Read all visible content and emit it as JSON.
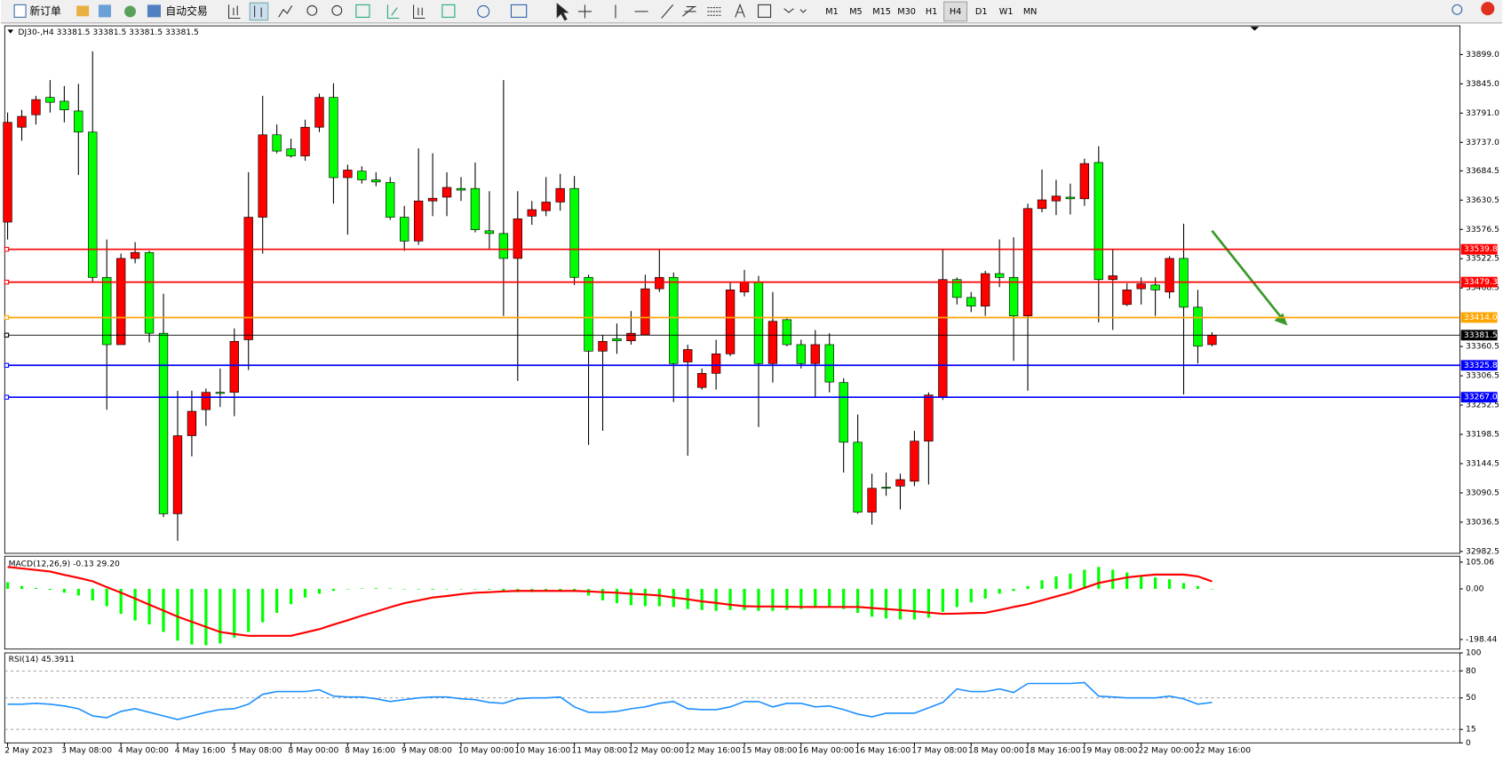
{
  "toolbar": {
    "new_order": "新订单",
    "auto_trading": "自动交易",
    "timeframes": [
      "M1",
      "M5",
      "M15",
      "M30",
      "H1",
      "H4",
      "D1",
      "W1",
      "MN"
    ],
    "active_timeframe": "H4"
  },
  "chart_data": [
    {
      "type": "candlestick",
      "title": "DJ30-,H4 33381.5 33381.5 33381.5 33381.5",
      "categories": [
        "2 May 2023",
        null,
        null,
        null,
        "3 May 08:00",
        null,
        null,
        null,
        "4 May 00:00",
        null,
        null,
        null,
        "4 May 16:00",
        null,
        null,
        null,
        "5 May 08:00",
        null,
        null,
        null,
        "8 May 00:00",
        null,
        null,
        null,
        "8 May 16:00",
        null,
        null,
        null,
        "9 May 08:00",
        null,
        null,
        null,
        "10 May 00:00",
        null,
        null,
        null,
        "10 May 16:00",
        null,
        null,
        null,
        "11 May 08:00",
        null,
        null,
        null,
        "12 May 00:00",
        null,
        null,
        null,
        "12 May 16:00",
        null,
        null,
        null,
        "15 May 08:00",
        null,
        null,
        null,
        "16 May 00:00",
        null,
        null,
        null,
        "16 May 16:00",
        null,
        null,
        null,
        "17 May 08:00",
        null,
        null,
        null,
        "18 May 00:00",
        null,
        null,
        null,
        "18 May 16:00",
        null,
        null,
        null,
        "19 May 08:00",
        null,
        null,
        null,
        "22 May 00:00",
        null,
        null,
        null,
        "22 May 16:00",
        null
      ],
      "open": [
        33590,
        33765,
        33788,
        33820,
        33813,
        33795,
        33756,
        33488,
        33364,
        33523,
        33534,
        33385,
        33052,
        33196,
        33244,
        33276,
        33276,
        33373,
        33599,
        33751,
        33725,
        33712,
        33765,
        33820,
        33672,
        33684,
        33668,
        33663,
        33599,
        33555,
        33629,
        33636,
        33652,
        33652,
        33574,
        33569,
        33523,
        33601,
        33611,
        33627,
        33652,
        33488,
        33352,
        33375,
        33371,
        33382,
        33467,
        33488,
        33332,
        33285,
        33311,
        33347,
        33461,
        33479,
        33329,
        33410,
        33364,
        33329,
        33364,
        33294,
        33184,
        33055,
        33101,
        33103,
        33112,
        33186,
        33267,
        33484,
        33451,
        33435,
        33495,
        33488,
        33417,
        33615,
        33629,
        33636,
        33633,
        33700,
        33484,
        33438,
        33467,
        33474,
        33461,
        33523,
        33433,
        33364
      ],
      "high": [
        33792,
        33797,
        33823,
        33852,
        33841,
        33845,
        33905,
        33558,
        33532,
        33553,
        33537,
        33458,
        33279,
        33279,
        33283,
        33320,
        33394,
        33682,
        33823,
        33770,
        33744,
        33779,
        33827,
        33846,
        33696,
        33693,
        33682,
        33673,
        33620,
        33726,
        33717,
        33682,
        33673,
        33700,
        33647,
        33852,
        33647,
        33629,
        33673,
        33679,
        33675,
        33493,
        33382,
        33403,
        33426,
        33493,
        33541,
        33497,
        33364,
        33320,
        33373,
        33479,
        33502,
        33491,
        33461,
        33412,
        33373,
        33391,
        33385,
        33302,
        33235,
        33126,
        33128,
        33126,
        33205,
        33276,
        33541,
        33488,
        33461,
        33500,
        33558,
        33562,
        33624,
        33687,
        33668,
        33661,
        33707,
        33730,
        33541,
        33477,
        33488,
        33488,
        33527,
        33587,
        33465,
        33387
      ],
      "low": [
        33558,
        33740,
        33770,
        33792,
        33774,
        33677,
        33479,
        33244,
        33364,
        33514,
        33368,
        33046,
        33002,
        33158,
        33214,
        33249,
        33232,
        33317,
        33532,
        33717,
        33709,
        33703,
        33756,
        33624,
        33567,
        33661,
        33656,
        33594,
        33537,
        33548,
        33601,
        33601,
        33629,
        33571,
        33541,
        33417,
        33297,
        33585,
        33601,
        33611,
        33474,
        33179,
        33205,
        33347,
        33364,
        33382,
        33461,
        33258,
        33159,
        33281,
        33281,
        33343,
        33453,
        33212,
        33294,
        33361,
        33320,
        33267,
        33276,
        33128,
        33052,
        33032,
        33085,
        33060,
        33103,
        33106,
        33262,
        33438,
        33424,
        33417,
        33470,
        33334,
        33279,
        33608,
        33603,
        33604,
        33620,
        33405,
        33391,
        33435,
        33438,
        33417,
        33449,
        33272,
        33329,
        33361
      ],
      "close": [
        33774,
        33785,
        33816,
        33811,
        33797,
        33756,
        33488,
        33364,
        33523,
        33534,
        33385,
        33052,
        33196,
        33241,
        33276,
        33274,
        33370,
        33599,
        33751,
        33721,
        33712,
        33765,
        33820,
        33672,
        33686,
        33668,
        33664,
        33599,
        33555,
        33629,
        33634,
        33654,
        33649,
        33576,
        33569,
        33523,
        33596,
        33613,
        33627,
        33652,
        33488,
        33352,
        33370,
        33371,
        33385,
        33467,
        33488,
        33329,
        33355,
        33311,
        33347,
        33465,
        33479,
        33329,
        33407,
        33364,
        33329,
        33364,
        33295,
        33184,
        33055,
        33099,
        33099,
        33115,
        33186,
        33271,
        33484,
        33451,
        33435,
        33495,
        33488,
        33417,
        33615,
        33631,
        33638,
        33633,
        33698,
        33484,
        33491,
        33465,
        33476,
        33465,
        33523,
        33433,
        33361,
        33381.5
      ],
      "up_color": "#ff0000",
      "down_color": "#00ff00",
      "ylim": [
        32979,
        33952
      ],
      "yticks": [
        {
          "value": 33899,
          "label": "33899.0"
        },
        {
          "value": 33845,
          "label": "33845.0"
        },
        {
          "value": 33791,
          "label": "33791.0"
        },
        {
          "value": 33737,
          "label": "33737.0"
        },
        33684.5,
        33630.5,
        33576.5,
        33522.5,
        33468.5,
        33360.5,
        33306.5,
        33252.5,
        33198.5,
        33144.5,
        33090.5,
        33036.5,
        32982.5
      ],
      "price_lines": [
        {
          "value": 33539.8,
          "color": "#ff0000"
        },
        {
          "value": 33479.3,
          "color": "#ff0000"
        },
        {
          "value": 33414,
          "label": "33414.0",
          "color": "#ffa500"
        },
        {
          "value": 33381.5,
          "color": "#000000"
        },
        {
          "value": 33325.8,
          "color": "#0000ff"
        },
        {
          "value": 33267,
          "label": "33267.0",
          "color": "#0000ff"
        }
      ]
    },
    {
      "type": "macd",
      "title": "MACD(12,26,9) -0.13 29.20",
      "histogram": [
        26,
        11,
        4,
        -4,
        -15,
        -26,
        -45,
        -68,
        -98,
        -124,
        -139,
        -169,
        -203,
        -218,
        -221,
        -214,
        -191,
        -169,
        -131,
        -94,
        -60,
        -34,
        -19,
        -8,
        -1,
        2,
        3,
        2,
        0,
        -2,
        -3,
        -2,
        0,
        -1,
        -3,
        -9,
        -13,
        -13,
        -11,
        -8,
        -11,
        -26,
        -45,
        -56,
        -64,
        -68,
        -68,
        -71,
        -79,
        -83,
        -86,
        -83,
        -83,
        -86,
        -86,
        -83,
        -79,
        -75,
        -71,
        -79,
        -94,
        -109,
        -116,
        -120,
        -120,
        -113,
        -90,
        -71,
        -53,
        -38,
        -19,
        -8,
        11,
        34,
        49,
        60,
        75,
        86,
        75,
        64,
        53,
        45,
        38,
        23,
        11,
        -0.13
      ],
      "signal": [
        86,
        80,
        74,
        68,
        55,
        43,
        30,
        7,
        -15,
        -38,
        -62,
        -85,
        -109,
        -129,
        -149,
        -169,
        -177,
        -184,
        -184,
        -184,
        -184,
        -171,
        -158,
        -140,
        -123,
        -105,
        -89,
        -72,
        -56,
        -45,
        -34,
        -28,
        -21,
        -15,
        -13,
        -10,
        -8,
        -8,
        -8,
        -8,
        -8,
        -10,
        -13,
        -15,
        -19,
        -22,
        -26,
        -34,
        -41,
        -49,
        -55,
        -62,
        -68,
        -69,
        -69,
        -70,
        -71,
        -71,
        -71,
        -71,
        -71,
        -75,
        -79,
        -83,
        -88,
        -93,
        -98,
        -97,
        -95,
        -94,
        -83,
        -71,
        -60,
        -45,
        -30,
        -15,
        4,
        23,
        34,
        45,
        51,
        56,
        56,
        56,
        49,
        29.2
      ],
      "histogram_color": "#00ff00",
      "signal_color": "#ff0000",
      "ylim": [
        -236,
        128
      ],
      "yticks": [
        105.06,
        {
          "value": 0,
          "label": "0.00"
        },
        -198.44
      ]
    },
    {
      "type": "line",
      "title": "RSI(14) 45.3911",
      "values": [
        43,
        43,
        44,
        43,
        41,
        38,
        30,
        28,
        35,
        38,
        34,
        30,
        26,
        30,
        34,
        37,
        38,
        43,
        54,
        57,
        57,
        57,
        59,
        52,
        51,
        51,
        49,
        46,
        48,
        50,
        51,
        51,
        49,
        48,
        45,
        44,
        49,
        50,
        50,
        51,
        40,
        34,
        34,
        35,
        38,
        40,
        44,
        46,
        38,
        37,
        37,
        40,
        46,
        46,
        40,
        44,
        44,
        40,
        41,
        37,
        32,
        29,
        33,
        33,
        33,
        39,
        45,
        60,
        57,
        57,
        60,
        56,
        66,
        66,
        66,
        66,
        67,
        52,
        51,
        50,
        50,
        50,
        52,
        49,
        43,
        45
      ],
      "color": "#1e90ff",
      "ylim": [
        0,
        100
      ],
      "yticks": [
        0,
        15,
        50,
        80,
        100
      ]
    }
  ]
}
